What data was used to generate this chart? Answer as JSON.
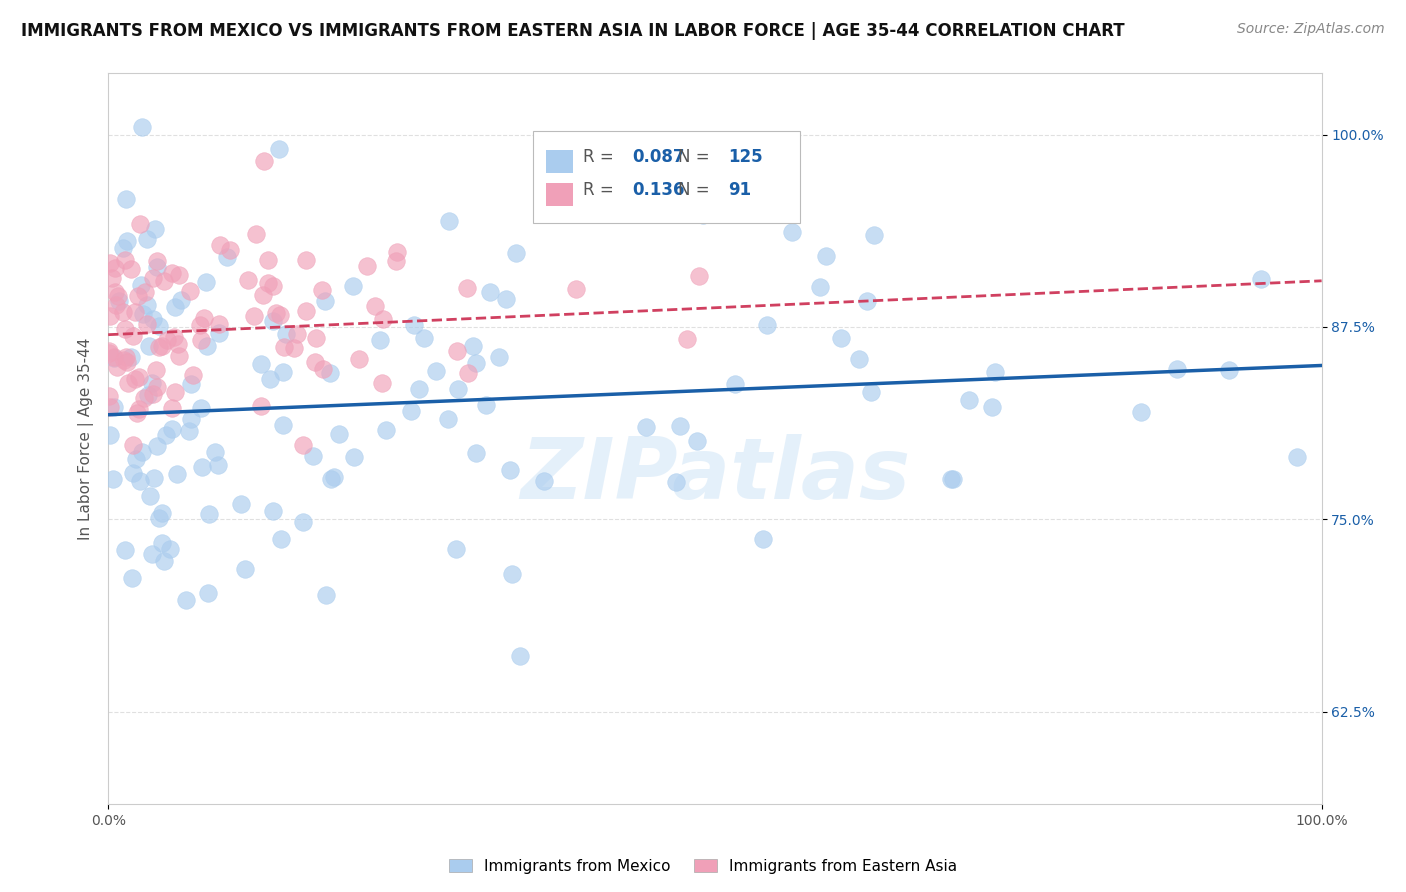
{
  "title": "IMMIGRANTS FROM MEXICO VS IMMIGRANTS FROM EASTERN ASIA IN LABOR FORCE | AGE 35-44 CORRELATION CHART",
  "source": "Source: ZipAtlas.com",
  "ylabel": "In Labor Force | Age 35-44",
  "yaxis_ticks": [
    0.625,
    0.75,
    0.875,
    1.0
  ],
  "yaxis_labels": [
    "62.5%",
    "75.0%",
    "87.5%",
    "100.0%"
  ],
  "xlim": [
    0.0,
    1.0
  ],
  "ylim": [
    0.565,
    1.04
  ],
  "legend_blue_R": "0.087",
  "legend_blue_N": "125",
  "legend_pink_R": "0.136",
  "legend_pink_N": "91",
  "blue_color": "#aaccee",
  "pink_color": "#f0a0b8",
  "trend_blue_color": "#1a5fa8",
  "trend_pink_color": "#d04060",
  "watermark": "ZIPatlas",
  "background_color": "#ffffff",
  "grid_color": "#dddddd",
  "title_fontsize": 12,
  "source_fontsize": 10,
  "axis_label_fontsize": 11,
  "tick_fontsize": 10,
  "legend_label_color": "#555555",
  "legend_value_color": "#1a5fa8",
  "bottom_label_color": "#333333"
}
